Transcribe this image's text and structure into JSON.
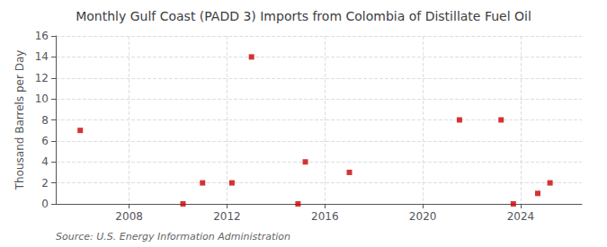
{
  "chart_data": {
    "type": "scatter",
    "title": "Monthly Gulf Coast (PADD 3) Imports from Colombia of Distillate Fuel Oil",
    "ylabel": "Thousand Barrels per Day",
    "annotation": "Source: U.S. Energy Information Administration",
    "x": [
      2006.0,
      2010.2,
      2011.0,
      2012.2,
      2013.0,
      2014.9,
      2015.2,
      2017.0,
      2021.5,
      2023.2,
      2023.7,
      2024.7,
      2025.2
    ],
    "values": [
      7,
      0,
      2,
      2,
      14,
      0,
      4,
      3,
      8,
      8,
      0,
      1,
      2
    ],
    "color": "#cc0000",
    "marker": "square",
    "xlim": [
      2005.0,
      2026.5
    ],
    "xticks": [
      2008,
      2012,
      2016,
      2020,
      2024
    ],
    "ylim": [
      0,
      16
    ],
    "yticks": [
      0,
      2,
      4,
      6,
      8,
      10,
      12,
      14,
      16
    ],
    "grid": true
  }
}
